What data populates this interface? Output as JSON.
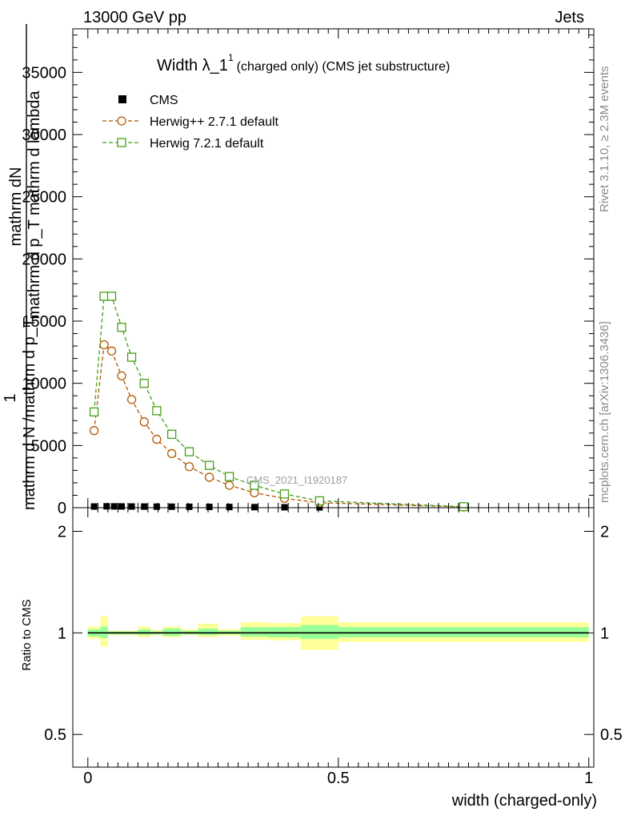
{
  "header": {
    "left": "13000 GeV pp",
    "right": "Jets"
  },
  "side_texts": {
    "rivet": "Rivet 3.1.10, ≥ 2.3M events",
    "mcplots": "mcplots.cern.ch [arXiv:1306.3436]"
  },
  "watermark": "CMS_2021_I1920187",
  "chart_data": [
    {
      "type": "line",
      "title": "Width λ_1",
      "title_sup": "1",
      "title_suffix": "(charged only) (CMS jet substructure)",
      "xlabel": "",
      "ylabel_lines": [
        "mathrm dN",
        "mathrm d p_T mathrm d lambda",
        "1",
        "mathrm d N /mathrm d p_T"
      ],
      "xlim": [
        -0.03,
        1.01
      ],
      "ylim": [
        0,
        38500
      ],
      "yticks": [
        0,
        5000,
        10000,
        15000,
        20000,
        25000,
        30000,
        35000
      ],
      "ytick_labels": [
        "0",
        "5000",
        "10000",
        "15000",
        "20000",
        "25000",
        "30000",
        "35000"
      ],
      "legend_position": "top-left",
      "series": [
        {
          "name": "CMS",
          "color": "#000000",
          "marker": "filled-square",
          "x": [
            0.0125,
            0.0375,
            0.0525,
            0.0675,
            0.0875,
            0.1125,
            0.1375,
            0.1675,
            0.2025,
            0.2425,
            0.2825,
            0.3325,
            0.3925,
            0.4625,
            0.75
          ],
          "values": [
            95,
            110,
            105,
            100,
            95,
            90,
            85,
            80,
            75,
            65,
            55,
            45,
            35,
            25,
            8
          ]
        },
        {
          "name": "Herwig++ 2.7.1 default",
          "color": "#b35900",
          "marker": "open-circle",
          "x": [
            0.0125,
            0.0325,
            0.0475,
            0.0675,
            0.0875,
            0.1125,
            0.1375,
            0.1675,
            0.2025,
            0.2425,
            0.2825,
            0.3325,
            0.3925,
            0.4625,
            0.75
          ],
          "values": [
            6200,
            13100,
            12600,
            10600,
            8700,
            6900,
            5500,
            4350,
            3300,
            2450,
            1800,
            1200,
            750,
            400,
            60
          ]
        },
        {
          "name": "Herwig 7.2.1 default",
          "color": "#45a016",
          "marker": "open-square",
          "x": [
            0.0125,
            0.0325,
            0.0475,
            0.0675,
            0.0875,
            0.1125,
            0.1375,
            0.1675,
            0.2025,
            0.2425,
            0.2825,
            0.3325,
            0.3925,
            0.4625,
            0.75
          ],
          "values": [
            7700,
            17000,
            17000,
            14500,
            12100,
            10000,
            7800,
            5900,
            4500,
            3400,
            2500,
            1800,
            1100,
            550,
            80
          ]
        }
      ]
    },
    {
      "type": "line",
      "xlabel": "width (charged-only)",
      "ylabel": "Ratio to CMS",
      "xlim": [
        -0.03,
        1.01
      ],
      "ylim": [
        0.4,
        2.35
      ],
      "y_scale": "log",
      "yticks": [
        0.5,
        1,
        2
      ],
      "ytick_labels": [
        "0.5",
        "1",
        "2"
      ],
      "xticks": [
        0,
        0.5,
        1
      ],
      "xtick_labels": [
        "0",
        "0.5",
        "1"
      ],
      "reference_value": 1,
      "stat_band_color": "#99ff99",
      "total_band_color": "#ffff99",
      "bands": [
        {
          "x0": 0.0,
          "x1": 0.025,
          "stat": [
            0.975,
            1.025
          ],
          "total": [
            0.96,
            1.045
          ]
        },
        {
          "x0": 0.025,
          "x1": 0.04,
          "stat": [
            0.965,
            1.045
          ],
          "total": [
            0.91,
            1.12
          ]
        },
        {
          "x0": 0.04,
          "x1": 0.06,
          "stat": [
            0.99,
            1.01
          ],
          "total": [
            0.985,
            1.015
          ]
        },
        {
          "x0": 0.06,
          "x1": 0.1,
          "stat": [
            0.99,
            1.01
          ],
          "total": [
            0.985,
            1.015
          ]
        },
        {
          "x0": 0.1,
          "x1": 0.125,
          "stat": [
            0.985,
            1.025
          ],
          "total": [
            0.97,
            1.045
          ]
        },
        {
          "x0": 0.125,
          "x1": 0.15,
          "stat": [
            0.99,
            1.01
          ],
          "total": [
            0.985,
            1.02
          ]
        },
        {
          "x0": 0.15,
          "x1": 0.185,
          "stat": [
            0.98,
            1.03
          ],
          "total": [
            0.97,
            1.045
          ]
        },
        {
          "x0": 0.185,
          "x1": 0.22,
          "stat": [
            0.99,
            1.015
          ],
          "total": [
            0.985,
            1.025
          ]
        },
        {
          "x0": 0.22,
          "x1": 0.26,
          "stat": [
            0.985,
            1.03
          ],
          "total": [
            0.97,
            1.065
          ]
        },
        {
          "x0": 0.26,
          "x1": 0.305,
          "stat": [
            0.99,
            1.015
          ],
          "total": [
            0.98,
            1.025
          ]
        },
        {
          "x0": 0.305,
          "x1": 0.36,
          "stat": [
            0.975,
            1.04
          ],
          "total": [
            0.955,
            1.075
          ]
        },
        {
          "x0": 0.36,
          "x1": 0.425,
          "stat": [
            0.97,
            1.04
          ],
          "total": [
            0.95,
            1.07
          ]
        },
        {
          "x0": 0.425,
          "x1": 0.5,
          "stat": [
            0.96,
            1.055
          ],
          "total": [
            0.89,
            1.12
          ]
        },
        {
          "x0": 0.5,
          "x1": 1.0,
          "stat": [
            0.97,
            1.04
          ],
          "total": [
            0.94,
            1.075
          ]
        }
      ],
      "series": [
        {
          "name": "CMS",
          "color": "#000000",
          "values": [
            1,
            1
          ]
        },
        {
          "name": "Herwig++ 2.7.1 default",
          "color": "#b35900",
          "values": []
        },
        {
          "name": "Herwig 7.2.1 default",
          "color": "#45a016",
          "values": []
        }
      ]
    }
  ]
}
